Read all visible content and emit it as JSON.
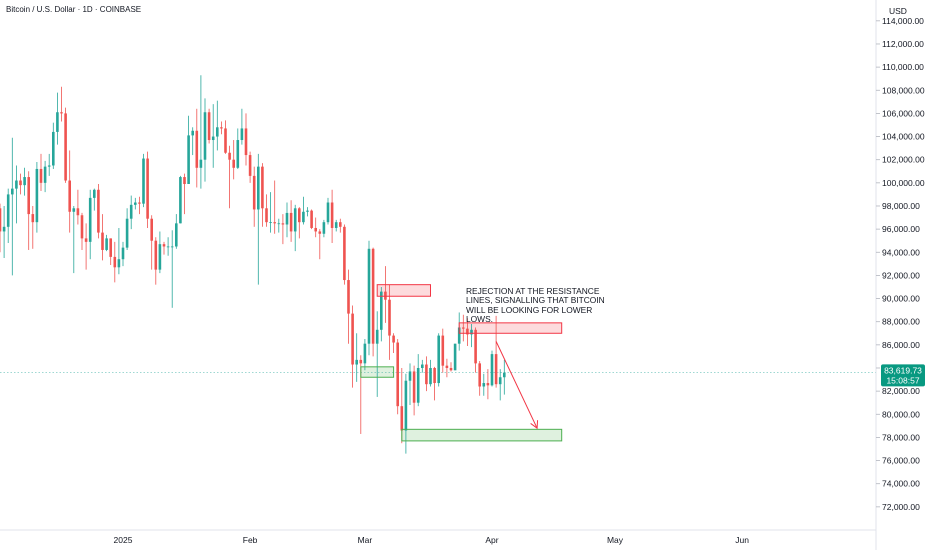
{
  "header": {
    "title": "Bitcoin / U.S. Dollar · 1D · COINBASE"
  },
  "price_scale": {
    "currency": "USD",
    "last_price": "83,619.73",
    "countdown": "15:08:57",
    "colors": {
      "up": "#26a69a",
      "down": "#ef5350",
      "grid": "#e0e3eb",
      "tag": "#089981"
    }
  },
  "annotation": {
    "text": "REJECTION AT THE RESISTANCE LINES, SIGNALLING THAT BITCOIN WILL BE LOOKING FOR LOWER LOWS."
  },
  "chart_data": {
    "type": "candlestick",
    "title": "Bitcoin / U.S. Dollar · 1D · COINBASE",
    "y_unit": "USD",
    "y_ticks": [
      72000,
      74000,
      76000,
      78000,
      80000,
      82000,
      84000,
      86000,
      88000,
      90000,
      92000,
      94000,
      96000,
      98000,
      100000,
      102000,
      104000,
      106000,
      108000,
      110000,
      112000,
      114000
    ],
    "y_tick_labels": [
      "72,000.00",
      "74,000.00",
      "76,000.00",
      "78,000.00",
      "80,000.00",
      "82,000.00",
      "84,000.00",
      "86,000.00",
      "88,000.00",
      "90,000.00",
      "92,000.00",
      "94,000.00",
      "96,000.00",
      "98,000.00",
      "100,000.00",
      "102,000.00",
      "104,000.00",
      "106,000.00",
      "108,000.00",
      "110,000.00",
      "112,000.00",
      "114,000.00"
    ],
    "ylim": [
      70000,
      115800
    ],
    "x_labels": [
      {
        "label": "2025",
        "date": "2025-01-01"
      },
      {
        "label": "Feb",
        "date": "2025-02-01"
      },
      {
        "label": "Mar",
        "date": "2025-03-01"
      },
      {
        "label": "Apr",
        "date": "2025-04-01"
      },
      {
        "label": "May",
        "date": "2025-05-01"
      },
      {
        "label": "Jun",
        "date": "2025-06-01"
      }
    ],
    "candles": [
      {
        "date": "2024-11-24",
        "o": 98000,
        "h": 98500,
        "l": 95500,
        "c": 96500
      },
      {
        "date": "2024-11-25",
        "o": 96500,
        "h": 98800,
        "l": 93000,
        "c": 96000
      },
      {
        "date": "2024-11-26",
        "o": 96000,
        "h": 98000,
        "l": 91500,
        "c": 96500
      },
      {
        "date": "2024-11-27",
        "o": 96500,
        "h": 99500,
        "l": 95800,
        "c": 98800
      },
      {
        "date": "2024-11-28",
        "o": 98800,
        "h": 99000,
        "l": 97500,
        "c": 97800
      },
      {
        "date": "2024-11-29",
        "o": 97800,
        "h": 99800,
        "l": 97200,
        "c": 99200
      },
      {
        "date": "2024-11-30",
        "o": 99200,
        "h": 99700,
        "l": 98000,
        "c": 98500
      },
      {
        "date": "2024-12-01",
        "o": 98500,
        "h": 99500,
        "l": 96000,
        "c": 97800
      },
      {
        "date": "2024-12-02",
        "o": 97800,
        "h": 98200,
        "l": 94000,
        "c": 95800
      },
      {
        "date": "2024-12-03",
        "o": 95800,
        "h": 98000,
        "l": 93500,
        "c": 96200
      },
      {
        "date": "2024-12-04",
        "o": 96200,
        "h": 99500,
        "l": 94800,
        "c": 99000
      },
      {
        "date": "2024-12-05",
        "o": 99000,
        "h": 103900,
        "l": 92000,
        "c": 99500
      },
      {
        "date": "2024-12-06",
        "o": 99500,
        "h": 101500,
        "l": 96500,
        "c": 100200
      },
      {
        "date": "2024-12-07",
        "o": 100200,
        "h": 100800,
        "l": 99000,
        "c": 99800
      },
      {
        "date": "2024-12-08",
        "o": 99800,
        "h": 101300,
        "l": 98900,
        "c": 100500
      },
      {
        "date": "2024-12-09",
        "o": 100500,
        "h": 101000,
        "l": 94200,
        "c": 97300
      },
      {
        "date": "2024-12-10",
        "o": 97300,
        "h": 98000,
        "l": 94300,
        "c": 96600
      },
      {
        "date": "2024-12-11",
        "o": 96600,
        "h": 101800,
        "l": 95700,
        "c": 101200
      },
      {
        "date": "2024-12-12",
        "o": 101200,
        "h": 102500,
        "l": 99300,
        "c": 100000
      },
      {
        "date": "2024-12-13",
        "o": 100000,
        "h": 101900,
        "l": 99200,
        "c": 101400
      },
      {
        "date": "2024-12-14",
        "o": 101400,
        "h": 102500,
        "l": 100600,
        "c": 101500
      },
      {
        "date": "2024-12-15",
        "o": 101500,
        "h": 105200,
        "l": 101200,
        "c": 104400
      },
      {
        "date": "2024-12-16",
        "o": 104400,
        "h": 107800,
        "l": 103300,
        "c": 106100
      },
      {
        "date": "2024-12-17",
        "o": 106100,
        "h": 108300,
        "l": 105300,
        "c": 106000
      },
      {
        "date": "2024-12-18",
        "o": 106000,
        "h": 106500,
        "l": 100000,
        "c": 100200
      },
      {
        "date": "2024-12-19",
        "o": 100200,
        "h": 102800,
        "l": 95700,
        "c": 97500
      },
      {
        "date": "2024-12-20",
        "o": 97500,
        "h": 98000,
        "l": 92200,
        "c": 97800
      },
      {
        "date": "2024-12-21",
        "o": 97800,
        "h": 99400,
        "l": 96400,
        "c": 97200
      },
      {
        "date": "2024-12-22",
        "o": 97200,
        "h": 97400,
        "l": 94200,
        "c": 95200
      },
      {
        "date": "2024-12-23",
        "o": 95200,
        "h": 96500,
        "l": 92500,
        "c": 94900
      },
      {
        "date": "2024-12-24",
        "o": 94900,
        "h": 99400,
        "l": 93400,
        "c": 98700
      },
      {
        "date": "2024-12-25",
        "o": 98700,
        "h": 99500,
        "l": 97600,
        "c": 99400
      },
      {
        "date": "2024-12-26",
        "o": 99400,
        "h": 99900,
        "l": 95200,
        "c": 95700
      },
      {
        "date": "2024-12-27",
        "o": 95700,
        "h": 97300,
        "l": 93300,
        "c": 94200
      },
      {
        "date": "2024-12-28",
        "o": 94200,
        "h": 95500,
        "l": 94100,
        "c": 95200
      },
      {
        "date": "2024-12-29",
        "o": 95200,
        "h": 95200,
        "l": 92900,
        "c": 93600
      },
      {
        "date": "2024-12-30",
        "o": 93600,
        "h": 94900,
        "l": 91400,
        "c": 92700
      },
      {
        "date": "2024-12-31",
        "o": 92700,
        "h": 96100,
        "l": 92100,
        "c": 93400
      },
      {
        "date": "2025-01-01",
        "o": 93400,
        "h": 94900,
        "l": 92800,
        "c": 94400
      },
      {
        "date": "2025-01-02",
        "o": 94400,
        "h": 97800,
        "l": 94200,
        "c": 96900
      },
      {
        "date": "2025-01-03",
        "o": 96900,
        "h": 98900,
        "l": 96000,
        "c": 98100
      },
      {
        "date": "2025-01-04",
        "o": 98100,
        "h": 98700,
        "l": 97700,
        "c": 98300
      },
      {
        "date": "2025-01-05",
        "o": 98300,
        "h": 98800,
        "l": 97300,
        "c": 98200
      },
      {
        "date": "2025-01-06",
        "o": 98200,
        "h": 102500,
        "l": 97900,
        "c": 102100
      },
      {
        "date": "2025-01-07",
        "o": 102100,
        "h": 102700,
        "l": 96100,
        "c": 96900
      },
      {
        "date": "2025-01-08",
        "o": 96900,
        "h": 97200,
        "l": 92500,
        "c": 95000
      },
      {
        "date": "2025-01-09",
        "o": 95000,
        "h": 95300,
        "l": 91200,
        "c": 92500
      },
      {
        "date": "2025-01-10",
        "o": 92500,
        "h": 95800,
        "l": 92200,
        "c": 94700
      },
      {
        "date": "2025-01-11",
        "o": 94700,
        "h": 94900,
        "l": 93800,
        "c": 94500
      },
      {
        "date": "2025-01-12",
        "o": 94500,
        "h": 95300,
        "l": 93700,
        "c": 94500
      },
      {
        "date": "2025-01-13",
        "o": 94500,
        "h": 95900,
        "l": 89200,
        "c": 94500
      },
      {
        "date": "2025-01-14",
        "o": 94500,
        "h": 97300,
        "l": 94300,
        "c": 96500
      },
      {
        "date": "2025-01-15",
        "o": 96500,
        "h": 100600,
        "l": 96500,
        "c": 100500
      },
      {
        "date": "2025-01-16",
        "o": 100500,
        "h": 100800,
        "l": 97300,
        "c": 99900
      },
      {
        "date": "2025-01-17",
        "o": 99900,
        "h": 105800,
        "l": 99900,
        "c": 104100
      },
      {
        "date": "2025-01-18",
        "o": 104100,
        "h": 104800,
        "l": 102400,
        "c": 104500
      },
      {
        "date": "2025-01-19",
        "o": 104500,
        "h": 106400,
        "l": 99600,
        "c": 101300
      },
      {
        "date": "2025-01-20",
        "o": 101300,
        "h": 109300,
        "l": 99500,
        "c": 102000
      },
      {
        "date": "2025-01-21",
        "o": 102000,
        "h": 107300,
        "l": 100100,
        "c": 106100
      },
      {
        "date": "2025-01-22",
        "o": 106100,
        "h": 106400,
        "l": 103400,
        "c": 103700
      },
      {
        "date": "2025-01-23",
        "o": 103700,
        "h": 106800,
        "l": 101300,
        "c": 104000
      },
      {
        "date": "2025-01-24",
        "o": 104000,
        "h": 107100,
        "l": 102800,
        "c": 104800
      },
      {
        "date": "2025-01-25",
        "o": 104800,
        "h": 105300,
        "l": 104200,
        "c": 104700
      },
      {
        "date": "2025-01-26",
        "o": 104700,
        "h": 105400,
        "l": 102500,
        "c": 102600
      },
      {
        "date": "2025-01-27",
        "o": 102600,
        "h": 103200,
        "l": 97800,
        "c": 102000
      },
      {
        "date": "2025-01-28",
        "o": 102000,
        "h": 103700,
        "l": 100300,
        "c": 101300
      },
      {
        "date": "2025-01-29",
        "o": 101300,
        "h": 104700,
        "l": 101200,
        "c": 103700
      },
      {
        "date": "2025-01-30",
        "o": 103700,
        "h": 106400,
        "l": 103300,
        "c": 104700
      },
      {
        "date": "2025-01-31",
        "o": 104700,
        "h": 106000,
        "l": 101500,
        "c": 102400
      },
      {
        "date": "2025-02-01",
        "o": 102400,
        "h": 102700,
        "l": 100000,
        "c": 100600
      },
      {
        "date": "2025-02-02",
        "o": 100600,
        "h": 101400,
        "l": 96200,
        "c": 97700
      },
      {
        "date": "2025-02-03",
        "o": 97700,
        "h": 102500,
        "l": 91200,
        "c": 101400
      },
      {
        "date": "2025-02-04",
        "o": 101400,
        "h": 101700,
        "l": 96200,
        "c": 97800
      },
      {
        "date": "2025-02-05",
        "o": 97800,
        "h": 99000,
        "l": 96200,
        "c": 96600
      },
      {
        "date": "2025-02-06",
        "o": 96600,
        "h": 99200,
        "l": 95700,
        "c": 96600
      },
      {
        "date": "2025-02-07",
        "o": 96600,
        "h": 100200,
        "l": 95600,
        "c": 96500
      },
      {
        "date": "2025-02-08",
        "o": 96500,
        "h": 96900,
        "l": 95700,
        "c": 96500
      },
      {
        "date": "2025-02-09",
        "o": 96500,
        "h": 97300,
        "l": 94700,
        "c": 96400
      },
      {
        "date": "2025-02-10",
        "o": 96400,
        "h": 98300,
        "l": 95300,
        "c": 97400
      },
      {
        "date": "2025-02-11",
        "o": 97400,
        "h": 98500,
        "l": 94900,
        "c": 95800
      },
      {
        "date": "2025-02-12",
        "o": 95800,
        "h": 98100,
        "l": 94100,
        "c": 97800
      },
      {
        "date": "2025-02-13",
        "o": 97800,
        "h": 97900,
        "l": 95200,
        "c": 96600
      },
      {
        "date": "2025-02-14",
        "o": 96600,
        "h": 98800,
        "l": 96400,
        "c": 97500
      },
      {
        "date": "2025-02-15",
        "o": 97500,
        "h": 97900,
        "l": 97100,
        "c": 97600
      },
      {
        "date": "2025-02-16",
        "o": 97600,
        "h": 97700,
        "l": 96000,
        "c": 96100
      },
      {
        "date": "2025-02-17",
        "o": 96100,
        "h": 97000,
        "l": 95300,
        "c": 95800
      },
      {
        "date": "2025-02-18",
        "o": 95800,
        "h": 96000,
        "l": 93400,
        "c": 95600
      },
      {
        "date": "2025-02-19",
        "o": 95600,
        "h": 96800,
        "l": 95300,
        "c": 96600
      },
      {
        "date": "2025-02-20",
        "o": 96600,
        "h": 98700,
        "l": 96400,
        "c": 98300
      },
      {
        "date": "2025-02-21",
        "o": 98300,
        "h": 99400,
        "l": 94800,
        "c": 96100
      },
      {
        "date": "2025-02-22",
        "o": 96100,
        "h": 96800,
        "l": 95800,
        "c": 96600
      },
      {
        "date": "2025-02-23",
        "o": 96600,
        "h": 96900,
        "l": 95700,
        "c": 96200
      },
      {
        "date": "2025-02-24",
        "o": 96200,
        "h": 96400,
        "l": 91200,
        "c": 91600
      },
      {
        "date": "2025-02-25",
        "o": 91600,
        "h": 92500,
        "l": 86100,
        "c": 88700
      },
      {
        "date": "2025-02-26",
        "o": 88700,
        "h": 89400,
        "l": 82300,
        "c": 84300
      },
      {
        "date": "2025-02-27",
        "o": 84300,
        "h": 87000,
        "l": 82800,
        "c": 84700
      },
      {
        "date": "2025-02-28",
        "o": 84700,
        "h": 85100,
        "l": 78300,
        "c": 84400
      },
      {
        "date": "2025-03-01",
        "o": 84400,
        "h": 86500,
        "l": 83800,
        "c": 86100
      },
      {
        "date": "2025-03-02",
        "o": 86100,
        "h": 95000,
        "l": 85100,
        "c": 94300
      },
      {
        "date": "2025-03-03",
        "o": 94300,
        "h": 94400,
        "l": 85000,
        "c": 86100
      },
      {
        "date": "2025-03-04",
        "o": 86100,
        "h": 88900,
        "l": 81500,
        "c": 87300
      },
      {
        "date": "2025-03-05",
        "o": 87300,
        "h": 91000,
        "l": 86300,
        "c": 90600
      },
      {
        "date": "2025-03-06",
        "o": 90600,
        "h": 92800,
        "l": 87900,
        "c": 89900
      },
      {
        "date": "2025-03-07",
        "o": 89900,
        "h": 91200,
        "l": 84700,
        "c": 86800
      },
      {
        "date": "2025-03-08",
        "o": 86800,
        "h": 87000,
        "l": 85300,
        "c": 86200
      },
      {
        "date": "2025-03-09",
        "o": 86200,
        "h": 86500,
        "l": 80000,
        "c": 80700
      },
      {
        "date": "2025-03-10",
        "o": 80700,
        "h": 84000,
        "l": 77500,
        "c": 78600
      },
      {
        "date": "2025-03-11",
        "o": 78600,
        "h": 83500,
        "l": 76600,
        "c": 82900
      },
      {
        "date": "2025-03-12",
        "o": 82900,
        "h": 84400,
        "l": 80800,
        "c": 83700
      },
      {
        "date": "2025-03-13",
        "o": 83700,
        "h": 84200,
        "l": 79900,
        "c": 81000
      },
      {
        "date": "2025-03-14",
        "o": 81000,
        "h": 85200,
        "l": 80700,
        "c": 84000
      },
      {
        "date": "2025-03-15",
        "o": 84000,
        "h": 84700,
        "l": 83600,
        "c": 84300
      },
      {
        "date": "2025-03-16",
        "o": 84300,
        "h": 85000,
        "l": 82000,
        "c": 82600
      },
      {
        "date": "2025-03-17",
        "o": 82600,
        "h": 84700,
        "l": 82400,
        "c": 84000
      },
      {
        "date": "2025-03-18",
        "o": 84000,
        "h": 84100,
        "l": 81200,
        "c": 82700
      },
      {
        "date": "2025-03-19",
        "o": 82700,
        "h": 87000,
        "l": 82400,
        "c": 86800
      },
      {
        "date": "2025-03-20",
        "o": 86800,
        "h": 87400,
        "l": 83600,
        "c": 84200
      },
      {
        "date": "2025-03-21",
        "o": 84200,
        "h": 84800,
        "l": 83200,
        "c": 84000
      },
      {
        "date": "2025-03-22",
        "o": 84000,
        "h": 84500,
        "l": 83700,
        "c": 83800
      },
      {
        "date": "2025-03-23",
        "o": 83800,
        "h": 86100,
        "l": 83800,
        "c": 86100
      },
      {
        "date": "2025-03-24",
        "o": 86100,
        "h": 88800,
        "l": 85500,
        "c": 87500
      },
      {
        "date": "2025-03-25",
        "o": 87500,
        "h": 88600,
        "l": 86300,
        "c": 87400
      },
      {
        "date": "2025-03-26",
        "o": 87400,
        "h": 88300,
        "l": 85900,
        "c": 86900
      },
      {
        "date": "2025-03-27",
        "o": 86900,
        "h": 87800,
        "l": 85800,
        "c": 87300
      },
      {
        "date": "2025-03-28",
        "o": 87300,
        "h": 87500,
        "l": 83600,
        "c": 84400
      },
      {
        "date": "2025-03-29",
        "o": 84400,
        "h": 84600,
        "l": 81600,
        "c": 82400
      },
      {
        "date": "2025-03-30",
        "o": 82400,
        "h": 83500,
        "l": 81600,
        "c": 82700
      },
      {
        "date": "2025-03-31",
        "o": 82700,
        "h": 83900,
        "l": 81300,
        "c": 82500
      },
      {
        "date": "2025-04-01",
        "o": 82500,
        "h": 85500,
        "l": 82400,
        "c": 85200
      },
      {
        "date": "2025-04-02",
        "o": 85200,
        "h": 88500,
        "l": 82300,
        "c": 82600
      },
      {
        "date": "2025-04-03",
        "o": 82600,
        "h": 83900,
        "l": 81200,
        "c": 83200
      },
      {
        "date": "2025-04-04",
        "o": 83200,
        "h": 84700,
        "l": 81700,
        "c": 83600
      }
    ],
    "zones": [
      {
        "kind": "resistance",
        "from": "2025-03-04",
        "to": "2025-03-17",
        "low": 90200,
        "high": 91200
      },
      {
        "kind": "resistance",
        "from": "2025-03-24",
        "to": "2025-04-18",
        "low": 87000,
        "high": 87900
      },
      {
        "kind": "support",
        "from": "2025-02-28",
        "to": "2025-03-08",
        "low": 83200,
        "high": 84100
      },
      {
        "kind": "support",
        "from": "2025-03-10",
        "to": "2025-04-18",
        "low": 77700,
        "high": 78700
      }
    ],
    "arrow": {
      "from_date": "2025-04-02",
      "from_price": 86300,
      "to_date": "2025-04-12",
      "to_price": 78800
    },
    "last_price_value": 83619.73,
    "grid": false,
    "legend": "none"
  }
}
